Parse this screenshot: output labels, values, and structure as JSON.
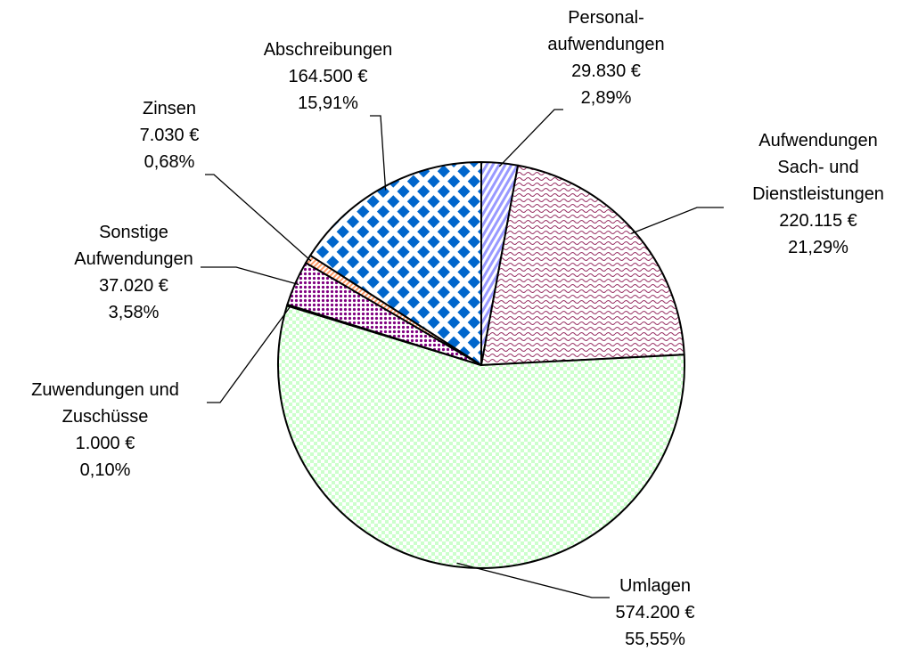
{
  "chart_data": {
    "type": "pie",
    "categories": [
      "Personal-\naufwendungen",
      "Aufwendungen\nSach- und\nDienstleistungen",
      "Umlagen",
      "Zuwendungen und\nZuschüsse",
      "Sonstige\nAufwendungen",
      "Zinsen",
      "Abschreibungen"
    ],
    "values": [
      29830,
      220115,
      574200,
      1000,
      37020,
      7030,
      164500
    ],
    "value_labels": [
      "29.830 €",
      "220.115 €",
      "574.200 €",
      "1.000 €",
      "37.020 €",
      "7.030 €",
      "164.500 €"
    ],
    "percentages": [
      2.89,
      21.29,
      55.55,
      0.1,
      3.58,
      0.68,
      15.91
    ],
    "percentage_labels": [
      "2,89%",
      "21,29%",
      "55,55%",
      "0,10%",
      "3,58%",
      "0,68%",
      "15,91%"
    ],
    "colors": [
      "#9999ff",
      "#993366",
      "#ccffcc",
      "#ffffcc",
      "#800080",
      "#ff9966",
      "#0066cc"
    ]
  }
}
